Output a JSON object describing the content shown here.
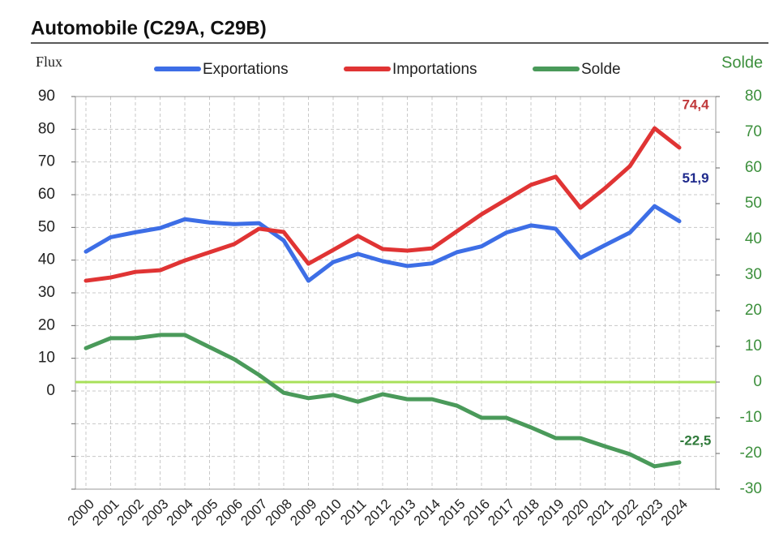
{
  "chart_data": {
    "type": "line",
    "title": "Automobile (C29A, C29B)",
    "y_label": "Flux",
    "y2_label": "Solde",
    "categories": [
      "2000",
      "2001",
      "2002",
      "2003",
      "2004",
      "2005",
      "2006",
      "2007",
      "2008",
      "2009",
      "2010",
      "2011",
      "2012",
      "2013",
      "2014",
      "2015",
      "2016",
      "2017",
      "2018",
      "2019",
      "2020",
      "2021",
      "2022",
      "2023",
      "2024"
    ],
    "series": [
      {
        "name": "Exportations",
        "color": "#3d6ee6",
        "label_color": "#1f2a8c",
        "axis": "y",
        "values": [
          42.6,
          47,
          48.5,
          49.8,
          52.5,
          51.5,
          51,
          51.3,
          46,
          33.7,
          39.4,
          41.9,
          39.7,
          38.2,
          39,
          42.4,
          44.2,
          48.4,
          50.6,
          49.6,
          40.7,
          44.6,
          48.4,
          56.5,
          51.9
        ],
        "value_labels": [
          null,
          null,
          null,
          null,
          null,
          null,
          null,
          null,
          null,
          null,
          null,
          null,
          null,
          null,
          null,
          null,
          null,
          null,
          null,
          null,
          null,
          null,
          null,
          null,
          "51,9"
        ]
      },
      {
        "name": "Importations",
        "color": "#e03434",
        "label_color": "#c0393b",
        "axis": "y",
        "values": [
          33.7,
          34.7,
          36.4,
          36.9,
          39.9,
          42.4,
          44.9,
          49.6,
          48.6,
          38.9,
          43.1,
          47.4,
          43.4,
          42.9,
          43.6,
          48.8,
          54,
          58.5,
          63,
          65.5,
          56,
          62,
          68.7,
          80.3,
          74.4
        ],
        "value_labels": [
          null,
          null,
          null,
          null,
          null,
          null,
          null,
          null,
          null,
          null,
          null,
          null,
          null,
          null,
          null,
          null,
          null,
          null,
          null,
          null,
          null,
          null,
          null,
          null,
          "74,4"
        ]
      },
      {
        "name": "Solde",
        "color": "#4a9a5a",
        "label_color": "#2f7a3a",
        "axis": "y2",
        "values": [
          9.5,
          12.3,
          12.3,
          13.2,
          13.2,
          9.8,
          6.4,
          2,
          -3,
          -4.5,
          -3.6,
          -5.5,
          -3.4,
          -4.8,
          -4.8,
          -6.6,
          -10,
          -10,
          -12.7,
          -15.7,
          -15.7,
          -18,
          -20.2,
          -23.6,
          -22.5
        ],
        "value_labels": [
          null,
          null,
          null,
          null,
          null,
          null,
          null,
          null,
          null,
          null,
          null,
          null,
          null,
          null,
          null,
          null,
          null,
          null,
          null,
          null,
          null,
          null,
          null,
          null,
          "-22,5"
        ]
      }
    ],
    "ylim": [
      -30,
      90
    ],
    "yticks": [
      0,
      10,
      20,
      30,
      40,
      50,
      60,
      70,
      80,
      90
    ],
    "yminor": [
      -30,
      -20,
      -10
    ],
    "y2lim": [
      -30,
      80
    ],
    "y2ticks": [
      -30,
      -20,
      -10,
      0,
      10,
      20,
      30,
      40,
      50,
      60,
      70,
      80
    ],
    "y2_color": "#3c8f3c",
    "zero_line_color": "#a8e05a",
    "grid": true
  }
}
